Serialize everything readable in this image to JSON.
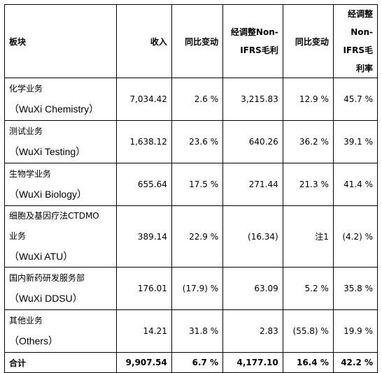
{
  "header": {
    "segment": "板块",
    "revenue": "收入",
    "yoy1": "同比变动",
    "gross_profit": "经调整Non-IFRS毛利",
    "yoy2": "同比变动",
    "margin": "经调整Non-IFRS毛利率"
  },
  "rows": [
    {
      "cn": "化学业务",
      "en": "（WuXi Chemistry）",
      "revenue": "7,034.42",
      "yoy1": "2.6 %",
      "gp": "3,215.83",
      "yoy2": "12.9 %",
      "margin": "45.7 %"
    },
    {
      "cn": "测试业务",
      "en": "（WuXi Testing）",
      "revenue": "1,638.12",
      "yoy1": "23.6 %",
      "gp": "640.26",
      "yoy2": "36.2 %",
      "margin": "39.1 %"
    },
    {
      "cn": "生物学业务",
      "en": "（WuXi Biology）",
      "revenue": "655.64",
      "yoy1": "17.5 %",
      "gp": "271.44",
      "yoy2": "21.3 %",
      "margin": "41.4 %"
    },
    {
      "cn1": "细胞及基因疗法CTDMO",
      "cn2": "业务",
      "en": "（WuXi ATU）",
      "revenue": "389.14",
      "yoy1": "22.9 %",
      "gp": "(16.34)",
      "yoy2": "注1",
      "margin": "(4.2) %"
    },
    {
      "cn": "国内新药研发服务部",
      "en": "（WuXi DDSU）",
      "revenue": "176.01",
      "yoy1": "(17.9) %",
      "gp": "63.09",
      "yoy2": "5.2 %",
      "margin": "35.8 %"
    },
    {
      "cn": "其他业务",
      "en": "（Others）",
      "revenue": "14.21",
      "yoy1": "31.8 %",
      "gp": "2.83",
      "yoy2": "(55.8) %",
      "margin": "19.9 %"
    }
  ],
  "total": {
    "label": "合计",
    "revenue": "9,907.54",
    "yoy1": "6.7 %",
    "gp": "4,177.10",
    "yoy2": "16.4 %",
    "margin": "42.2 %"
  }
}
